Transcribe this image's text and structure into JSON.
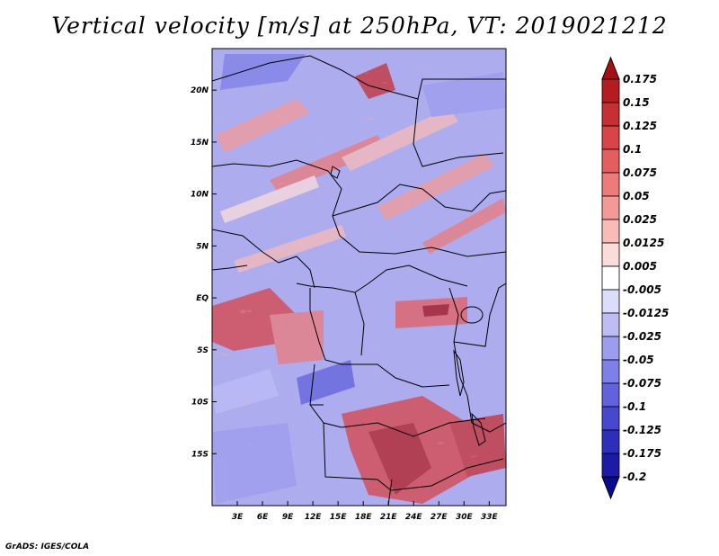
{
  "title": "Vertical velocity [m/s] at 250hPa, VT: 2019021212",
  "credit": "GrADS: IGES/COLA",
  "map": {
    "region": "Central Africa",
    "field": "Vertical velocity",
    "units": "m/s",
    "level": "250hPa",
    "valid_time": "2019021212",
    "lon_range": [
      0,
      35
    ],
    "lat_range": [
      -20,
      24
    ],
    "x_ticks": [
      {
        "value": 3,
        "label": "3E"
      },
      {
        "value": 6,
        "label": "6E"
      },
      {
        "value": 9,
        "label": "9E"
      },
      {
        "value": 12,
        "label": "12E"
      },
      {
        "value": 15,
        "label": "15E"
      },
      {
        "value": 18,
        "label": "18E"
      },
      {
        "value": 21,
        "label": "21E"
      },
      {
        "value": 24,
        "label": "24E"
      },
      {
        "value": 27,
        "label": "27E"
      },
      {
        "value": 30,
        "label": "30E"
      },
      {
        "value": 33,
        "label": "33E"
      }
    ],
    "y_ticks": [
      {
        "value": 20,
        "label": "20N"
      },
      {
        "value": 15,
        "label": "15N"
      },
      {
        "value": 10,
        "label": "10N"
      },
      {
        "value": 5,
        "label": "5N"
      },
      {
        "value": 0,
        "label": "EQ"
      },
      {
        "value": -5,
        "label": "5S"
      },
      {
        "value": -10,
        "label": "10S"
      },
      {
        "value": -15,
        "label": "15S"
      }
    ]
  },
  "colorbar": {
    "labels": [
      "0.175",
      "0.15",
      "0.125",
      "0.1",
      "0.075",
      "0.05",
      "0.025",
      "0.0125",
      "0.005",
      "-0.005",
      "-0.0125",
      "-0.025",
      "-0.05",
      "-0.075",
      "-0.1",
      "-0.125",
      "-0.175",
      "-0.2"
    ],
    "colors": [
      "#a50f15",
      "#b51c22",
      "#c62f33",
      "#d84448",
      "#e45e5f",
      "#ec7b7a",
      "#f39a98",
      "#f8bbb8",
      "#fcdcda",
      "#ffffff",
      "#dcdcfb",
      "#bdbdf6",
      "#9d9df0",
      "#7f7fe8",
      "#6262dd",
      "#4747cf",
      "#2e2ebd",
      "#1b1ba8",
      "#0b0b8e"
    ]
  }
}
